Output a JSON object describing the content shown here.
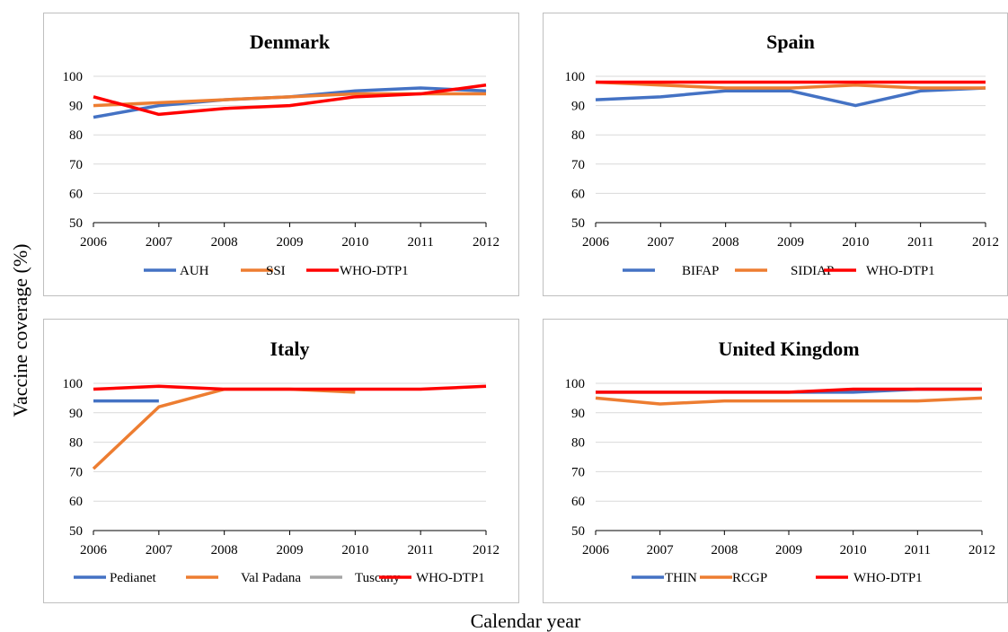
{
  "axis_titles": {
    "y": "Vaccine coverage (%)",
    "x": "Calendar year"
  },
  "colors": {
    "blue": "#4472C4",
    "orange": "#ED7D31",
    "gray": "#A5A5A5",
    "red": "#FF0000",
    "grid": "#D9D9D9",
    "frame": "#BFBFBF"
  },
  "chart_data": [
    {
      "type": "line",
      "title": "Denmark",
      "x": [
        2006,
        2007,
        2008,
        2009,
        2010,
        2011,
        2012
      ],
      "ylim": [
        50,
        100
      ],
      "yticks": [
        50,
        60,
        70,
        80,
        90,
        100
      ],
      "grid": true,
      "legend_position": "bottom",
      "series": [
        {
          "name": "AUH",
          "color": "#4472C4",
          "values": [
            86,
            90,
            92,
            93,
            95,
            96,
            95
          ]
        },
        {
          "name": "SSI",
          "color": "#ED7D31",
          "values": [
            90,
            91,
            92,
            93,
            94,
            94,
            94
          ]
        },
        {
          "name": "WHO-DTP1",
          "color": "#FF0000",
          "values": [
            93,
            87,
            89,
            90,
            93,
            94,
            97
          ]
        }
      ]
    },
    {
      "type": "line",
      "title": "Spain",
      "x": [
        2006,
        2007,
        2008,
        2009,
        2010,
        2011,
        2012
      ],
      "ylim": [
        50,
        100
      ],
      "yticks": [
        50,
        60,
        70,
        80,
        90,
        100
      ],
      "grid": true,
      "legend_position": "bottom",
      "series": [
        {
          "name": "BIFAP",
          "color": "#4472C4",
          "values": [
            92,
            93,
            95,
            95,
            90,
            95,
            96
          ]
        },
        {
          "name": "SIDIAP",
          "color": "#ED7D31",
          "values": [
            98,
            97,
            96,
            96,
            97,
            96,
            96
          ]
        },
        {
          "name": "WHO-DTP1",
          "color": "#FF0000",
          "values": [
            98,
            98,
            98,
            98,
            98,
            98,
            98
          ]
        }
      ]
    },
    {
      "type": "line",
      "title": "Italy",
      "x": [
        2006,
        2007,
        2008,
        2009,
        2010,
        2011,
        2012
      ],
      "ylim": [
        50,
        100
      ],
      "yticks": [
        50,
        60,
        70,
        80,
        90,
        100
      ],
      "grid": true,
      "legend_position": "bottom",
      "series": [
        {
          "name": "Pedianet",
          "color": "#4472C4",
          "values": [
            94,
            94,
            null,
            null,
            null,
            null,
            null
          ]
        },
        {
          "name": "Val Padana",
          "color": "#ED7D31",
          "values": [
            71,
            92,
            98,
            98,
            97,
            null,
            null
          ]
        },
        {
          "name": "Tuscany",
          "color": "#A5A5A5",
          "values": [
            null,
            null,
            null,
            null,
            null,
            null,
            null
          ]
        },
        {
          "name": "WHO-DTP1",
          "color": "#FF0000",
          "values": [
            98,
            99,
            98,
            98,
            98,
            98,
            99
          ]
        }
      ]
    },
    {
      "type": "line",
      "title": "United Kingdom",
      "x": [
        2006,
        2007,
        2008,
        2009,
        2010,
        2011,
        2012
      ],
      "ylim": [
        50,
        100
      ],
      "yticks": [
        50,
        60,
        70,
        80,
        90,
        100
      ],
      "grid": true,
      "legend_position": "bottom",
      "series": [
        {
          "name": "THIN",
          "color": "#4472C4",
          "values": [
            97,
            97,
            97,
            97,
            97,
            98,
            98
          ]
        },
        {
          "name": "RCGP",
          "color": "#ED7D31",
          "values": [
            95,
            93,
            94,
            94,
            94,
            94,
            95
          ]
        },
        {
          "name": "WHO-DTP1",
          "color": "#FF0000",
          "values": [
            97,
            97,
            97,
            97,
            98,
            98,
            98
          ]
        }
      ]
    }
  ]
}
